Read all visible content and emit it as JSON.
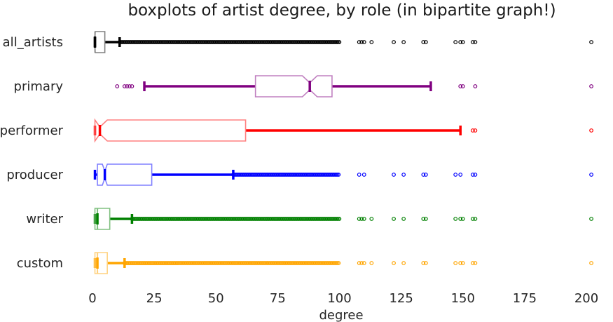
{
  "chart_data": {
    "type": "boxplot",
    "title": "boxplots of artist degree, by role (in bipartite graph!)",
    "xlabel": "degree",
    "ylabel": "",
    "xlim": [
      -3,
      205
    ],
    "xticks": [
      0,
      25,
      50,
      75,
      100,
      125,
      150,
      175,
      200
    ],
    "grid": false,
    "notched": true,
    "series": [
      {
        "name": "all_artists",
        "color": "#000000",
        "box_color": "#808080",
        "whisker_low": 1,
        "q1": 1,
        "median": 1,
        "q3": 5,
        "whisker_high": 11,
        "notch_low": 0.9,
        "notch_high": 1.1,
        "outliers_dense": [
          11,
          100
        ],
        "outliers": [
          108,
          109,
          110,
          113,
          122,
          126,
          134,
          135,
          147,
          149,
          150,
          154,
          155,
          202
        ]
      },
      {
        "name": "primary",
        "color": "#800080",
        "box_color": "#c080c0",
        "whisker_low": 21,
        "q1": 66,
        "median": 88,
        "q3": 97,
        "whisker_high": 137,
        "notch_low": 85,
        "notch_high": 91,
        "outliers_dense": [],
        "outliers": [
          10,
          13,
          14,
          15,
          16,
          149,
          150,
          155,
          202
        ]
      },
      {
        "name": "performer",
        "color": "#ff0000",
        "box_color": "#ff8080",
        "whisker_low": 1,
        "q1": 1,
        "median": 3,
        "q3": 62,
        "whisker_high": 149,
        "notch_low": 0,
        "notch_high": 6,
        "outliers_dense": [],
        "outliers": [
          154,
          155,
          202
        ]
      },
      {
        "name": "producer",
        "color": "#0000ff",
        "box_color": "#8080ff",
        "whisker_low": 1,
        "q1": 2,
        "median": 5,
        "q3": 24,
        "whisker_high": 57,
        "notch_low": 4,
        "notch_high": 6,
        "outliers_dense": [
          57,
          100
        ],
        "outliers": [
          108,
          110,
          122,
          126,
          134,
          135,
          147,
          149,
          154,
          155,
          202
        ]
      },
      {
        "name": "writer",
        "color": "#008000",
        "box_color": "#80c080",
        "whisker_low": 1,
        "q1": 1,
        "median": 2,
        "q3": 7,
        "whisker_high": 16,
        "notch_low": 1.9,
        "notch_high": 2.1,
        "outliers_dense": [
          16,
          100
        ],
        "outliers": [
          108,
          109,
          110,
          113,
          122,
          126,
          134,
          135,
          147,
          149,
          150,
          154,
          155,
          202
        ]
      },
      {
        "name": "custom",
        "color": "#ffa500",
        "box_color": "#ffd280",
        "whisker_low": 1,
        "q1": 1,
        "median": 2,
        "q3": 6,
        "whisker_high": 13,
        "notch_low": 1.9,
        "notch_high": 2.1,
        "outliers_dense": [
          13,
          100
        ],
        "outliers": [
          108,
          109,
          110,
          113,
          122,
          126,
          134,
          135,
          147,
          149,
          150,
          154,
          155,
          202
        ]
      }
    ]
  }
}
